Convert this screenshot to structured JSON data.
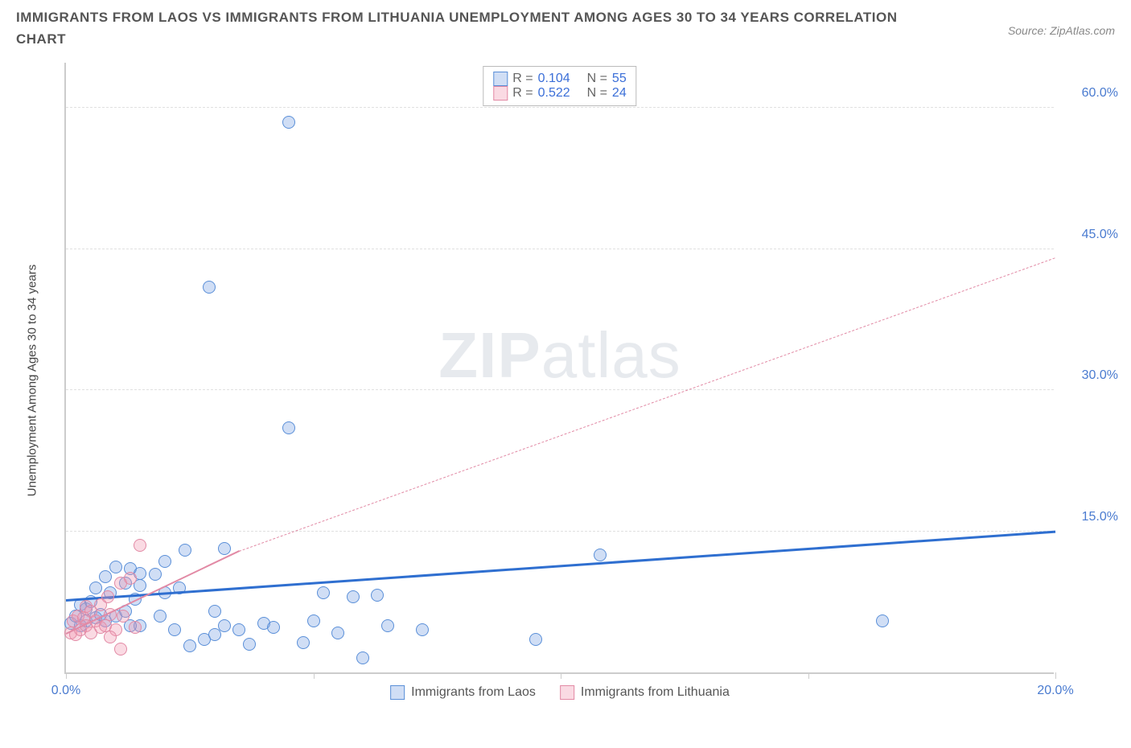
{
  "title": "IMMIGRANTS FROM LAOS VS IMMIGRANTS FROM LITHUANIA UNEMPLOYMENT AMONG AGES 30 TO 34 YEARS CORRELATION CHART",
  "source": "Source: ZipAtlas.com",
  "watermark_a": "ZIP",
  "watermark_b": "atlas",
  "chart": {
    "type": "scatter",
    "y_axis_title": "Unemployment Among Ages 30 to 34 years",
    "xlim": [
      0,
      20
    ],
    "ylim": [
      0,
      65
    ],
    "x_ticks": [
      0,
      5,
      10,
      15,
      20
    ],
    "x_tick_labels": [
      "0.0%",
      "",
      "",
      "",
      "20.0%"
    ],
    "y_ticks": [
      15,
      30,
      45,
      60
    ],
    "y_tick_labels": [
      "15.0%",
      "30.0%",
      "45.0%",
      "60.0%"
    ],
    "background_color": "#ffffff",
    "grid_color": "#e0e0e0",
    "axis_color": "#cccccc",
    "tick_label_color": "#4a7bd0",
    "tick_label_fontsize": 16,
    "point_radius": 8,
    "series": [
      {
        "name": "Immigrants from Laos",
        "fill": "rgba(120,160,225,0.35)",
        "stroke": "#5a8fd8",
        "trend_color": "#2f6fd0",
        "trend_width": 3,
        "trend_dash": "solid",
        "trend": {
          "x1": 0,
          "y1": 7.5,
          "x2": 20,
          "y2": 14.8
        },
        "R": "0.104",
        "N": "55",
        "points": [
          [
            0.1,
            5.2
          ],
          [
            0.2,
            6.0
          ],
          [
            0.3,
            5.0
          ],
          [
            0.3,
            7.2
          ],
          [
            0.4,
            5.5
          ],
          [
            0.4,
            6.8
          ],
          [
            0.5,
            7.5
          ],
          [
            0.6,
            5.8
          ],
          [
            0.6,
            9.0
          ],
          [
            0.7,
            6.2
          ],
          [
            0.8,
            10.2
          ],
          [
            0.8,
            5.5
          ],
          [
            0.9,
            8.5
          ],
          [
            1.0,
            11.2
          ],
          [
            1.0,
            6.0
          ],
          [
            1.2,
            9.5
          ],
          [
            1.2,
            6.5
          ],
          [
            1.3,
            11.0
          ],
          [
            1.4,
            7.8
          ],
          [
            1.5,
            9.2
          ],
          [
            1.5,
            5.0
          ],
          [
            1.8,
            10.4
          ],
          [
            1.9,
            6.0
          ],
          [
            2.0,
            11.8
          ],
          [
            2.2,
            4.5
          ],
          [
            2.3,
            9.0
          ],
          [
            2.4,
            13.0
          ],
          [
            2.5,
            2.8
          ],
          [
            2.8,
            3.5
          ],
          [
            3.0,
            6.5
          ],
          [
            3.0,
            4.0
          ],
          [
            3.2,
            13.2
          ],
          [
            3.2,
            5.0
          ],
          [
            3.5,
            4.5
          ],
          [
            3.7,
            3.0
          ],
          [
            4.0,
            5.2
          ],
          [
            4.2,
            4.8
          ],
          [
            4.5,
            26.0
          ],
          [
            4.8,
            3.2
          ],
          [
            5.0,
            5.5
          ],
          [
            5.2,
            8.5
          ],
          [
            5.5,
            4.2
          ],
          [
            5.8,
            8.0
          ],
          [
            6.0,
            1.5
          ],
          [
            6.3,
            8.2
          ],
          [
            6.5,
            5.0
          ],
          [
            7.2,
            4.5
          ],
          [
            9.5,
            3.5
          ],
          [
            10.8,
            12.5
          ],
          [
            16.5,
            5.5
          ],
          [
            2.9,
            41.0
          ],
          [
            4.5,
            58.5
          ],
          [
            1.5,
            10.5
          ],
          [
            2.0,
            8.5
          ],
          [
            1.3,
            5.0
          ]
        ]
      },
      {
        "name": "Immigrants from Lithuania",
        "fill": "rgba(240,150,175,0.35)",
        "stroke": "#e28aa5",
        "trend_color": "#e28aa5",
        "trend_width": 2,
        "trend_dash": "none",
        "trend": {
          "x1": 0,
          "y1": 4.0,
          "x2": 3.5,
          "y2": 12.8
        },
        "trend_dashed_ext": {
          "x1": 3.5,
          "y1": 12.8,
          "x2": 20,
          "y2": 44.0
        },
        "R": "0.522",
        "N": "24",
        "points": [
          [
            0.1,
            4.2
          ],
          [
            0.15,
            5.5
          ],
          [
            0.2,
            4.0
          ],
          [
            0.25,
            6.0
          ],
          [
            0.3,
            4.5
          ],
          [
            0.35,
            5.8
          ],
          [
            0.4,
            5.0
          ],
          [
            0.4,
            7.0
          ],
          [
            0.5,
            4.2
          ],
          [
            0.5,
            6.5
          ],
          [
            0.6,
            5.5
          ],
          [
            0.7,
            4.8
          ],
          [
            0.7,
            7.2
          ],
          [
            0.8,
            5.0
          ],
          [
            0.85,
            8.0
          ],
          [
            0.9,
            6.2
          ],
          [
            1.0,
            4.5
          ],
          [
            1.1,
            9.5
          ],
          [
            1.15,
            6.0
          ],
          [
            1.3,
            10.0
          ],
          [
            1.4,
            4.8
          ],
          [
            1.5,
            13.5
          ],
          [
            1.1,
            2.5
          ],
          [
            0.9,
            3.8
          ]
        ]
      }
    ]
  },
  "legend_top": {
    "r_label": "R =",
    "n_label": "N ="
  },
  "legend_bottom": {
    "items": [
      "Immigrants from Laos",
      "Immigrants from Lithuania"
    ]
  }
}
